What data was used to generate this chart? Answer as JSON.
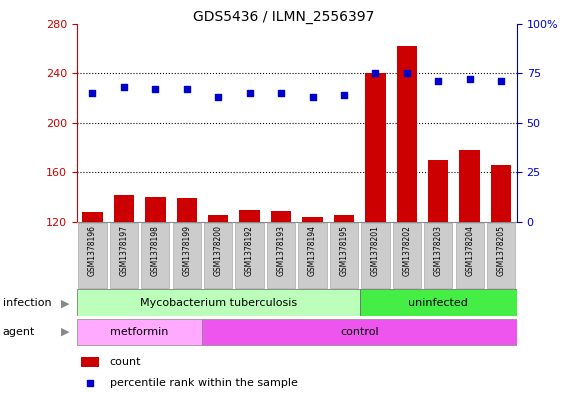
{
  "title": "GDS5436 / ILMN_2556397",
  "samples": [
    "GSM1378196",
    "GSM1378197",
    "GSM1378198",
    "GSM1378199",
    "GSM1378200",
    "GSM1378192",
    "GSM1378193",
    "GSM1378194",
    "GSM1378195",
    "GSM1378201",
    "GSM1378202",
    "GSM1378203",
    "GSM1378204",
    "GSM1378205"
  ],
  "counts": [
    128,
    142,
    140,
    139,
    126,
    130,
    129,
    124,
    126,
    240,
    262,
    170,
    178,
    166
  ],
  "percentile_ranks": [
    65,
    68,
    67,
    67,
    63,
    65,
    65,
    63,
    64,
    75,
    75,
    71,
    72,
    71
  ],
  "ylim_left": [
    120,
    280
  ],
  "ylim_right": [
    0,
    100
  ],
  "yticks_left": [
    120,
    160,
    200,
    240,
    280
  ],
  "yticks_right": [
    0,
    25,
    50,
    75,
    100
  ],
  "bar_color": "#cc0000",
  "dot_color": "#0000cc",
  "infection_groups": [
    {
      "label": "Mycobacterium tuberculosis",
      "start": 0,
      "end": 9,
      "color": "#bbffbb"
    },
    {
      "label": "uninfected",
      "start": 9,
      "end": 14,
      "color": "#44ee44"
    }
  ],
  "agent_groups": [
    {
      "label": "metformin",
      "start": 0,
      "end": 4,
      "color": "#ffaaff"
    },
    {
      "label": "control",
      "start": 4,
      "end": 14,
      "color": "#ee55ee"
    }
  ],
  "infection_label": "infection",
  "agent_label": "agent",
  "legend_count_label": "count",
  "legend_percentile_label": "percentile rank within the sample",
  "tick_color_left": "#cc0000",
  "tick_color_right": "#0000cc",
  "label_arrow_color": "#888888",
  "sample_bg_color": "#cccccc",
  "sample_border_color": "#aaaaaa"
}
